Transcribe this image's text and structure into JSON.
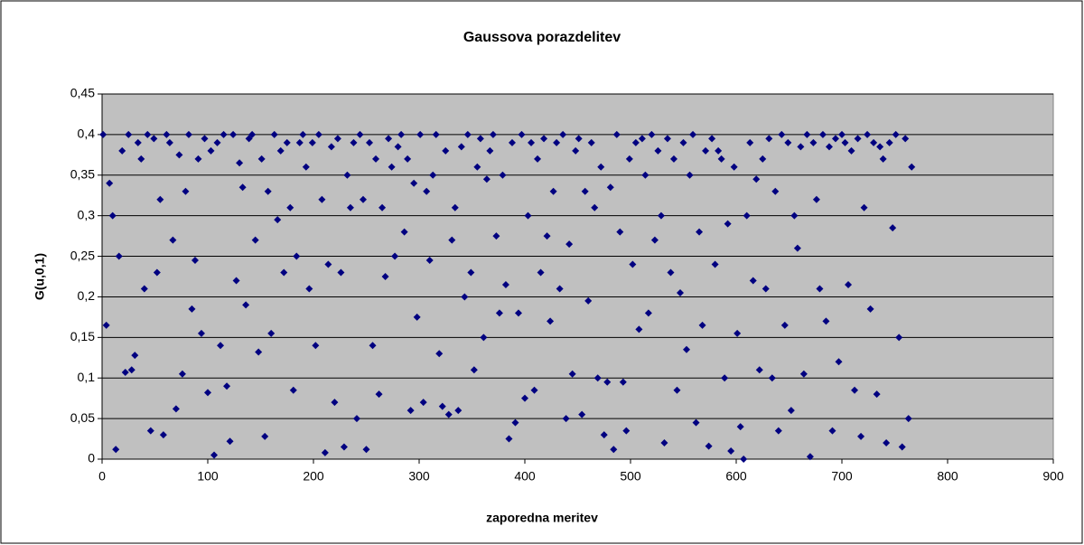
{
  "chart_data": {
    "type": "scatter",
    "title": "Gaussova porazdelitev",
    "x_label": "zaporedna meritev",
    "y_label": "G(u,0,1)",
    "color": "#000080",
    "grid": true,
    "xlim": [
      0,
      900
    ],
    "xticks": [
      0,
      100,
      200,
      300,
      400,
      500,
      600,
      700,
      800,
      900
    ],
    "ylim": [
      0,
      0.45
    ],
    "yticks": [
      0,
      {
        "value": 0.05,
        "label": "0,05"
      },
      {
        "value": 0.1,
        "label": "0,1"
      },
      {
        "value": 0.15,
        "label": "0,15"
      },
      {
        "value": 0.2,
        "label": "0,2"
      },
      {
        "value": 0.25,
        "label": "0,25"
      },
      {
        "value": 0.3,
        "label": "0,3"
      },
      {
        "value": 0.35,
        "label": "0,35"
      },
      {
        "value": 0.4,
        "label": "0,4"
      },
      {
        "value": 0.45,
        "label": "0,45"
      }
    ],
    "x": [
      1,
      4,
      7,
      10,
      13,
      16,
      19,
      22,
      25,
      28,
      31,
      34,
      37,
      40,
      43,
      46,
      49,
      52,
      55,
      58,
      61,
      64,
      67,
      70,
      73,
      76,
      79,
      82,
      85,
      88,
      91,
      94,
      97,
      100,
      103,
      106,
      109,
      112,
      115,
      118,
      121,
      124,
      127,
      130,
      133,
      136,
      139,
      142,
      145,
      148,
      151,
      154,
      157,
      160,
      163,
      166,
      169,
      172,
      175,
      178,
      181,
      184,
      187,
      190,
      193,
      196,
      199,
      202,
      205,
      208,
      211,
      214,
      217,
      220,
      223,
      226,
      229,
      232,
      235,
      238,
      241,
      244,
      247,
      250,
      253,
      256,
      259,
      262,
      265,
      268,
      271,
      274,
      277,
      280,
      283,
      286,
      289,
      292,
      295,
      298,
      301,
      304,
      307,
      310,
      313,
      316,
      319,
      322,
      325,
      328,
      331,
      334,
      337,
      340,
      343,
      346,
      349,
      352,
      355,
      358,
      361,
      364,
      367,
      370,
      373,
      376,
      379,
      382,
      385,
      388,
      391,
      394,
      397,
      400,
      403,
      406,
      409,
      412,
      415,
      418,
      421,
      424,
      427,
      430,
      433,
      436,
      439,
      442,
      445,
      448,
      451,
      454,
      457,
      460,
      463,
      466,
      469,
      472,
      475,
      478,
      481,
      484,
      487,
      490,
      493,
      496,
      499,
      502,
      505,
      508,
      511,
      514,
      517,
      520,
      523,
      526,
      529,
      532,
      535,
      538,
      541,
      544,
      547,
      550,
      553,
      556,
      559,
      562,
      565,
      568,
      571,
      574,
      577,
      580,
      583,
      586,
      589,
      592,
      595,
      598,
      601,
      604,
      607,
      610,
      613,
      616,
      619,
      622,
      625,
      628,
      631,
      634,
      637,
      640,
      643,
      646,
      649,
      652,
      655,
      658,
      661,
      664,
      667,
      670,
      673,
      676,
      679,
      682,
      685,
      688,
      691,
      694,
      697,
      700,
      703,
      706,
      709,
      712,
      715,
      718,
      721,
      724,
      727,
      730,
      733,
      736,
      739,
      742,
      745,
      748,
      751,
      754,
      757,
      760,
      763,
      766
    ],
    "values": [
      0.4,
      0.165,
      0.34,
      0.3,
      0.012,
      0.25,
      0.38,
      0.107,
      0.4,
      0.11,
      0.128,
      0.39,
      0.37,
      0.21,
      0.4,
      0.035,
      0.395,
      0.23,
      0.32,
      0.03,
      0.4,
      0.39,
      0.27,
      0.062,
      0.375,
      0.105,
      0.33,
      0.4,
      0.185,
      0.245,
      0.37,
      0.155,
      0.395,
      0.082,
      0.38,
      0.005,
      0.39,
      0.14,
      0.4,
      0.09,
      0.022,
      0.4,
      0.22,
      0.365,
      0.335,
      0.19,
      0.395,
      0.4,
      0.27,
      0.132,
      0.37,
      0.028,
      0.33,
      0.155,
      0.4,
      0.295,
      0.38,
      0.23,
      0.39,
      0.31,
      0.085,
      0.25,
      0.39,
      0.4,
      0.36,
      0.21,
      0.39,
      0.14,
      0.4,
      0.32,
      0.008,
      0.24,
      0.385,
      0.07,
      0.395,
      0.23,
      0.015,
      0.35,
      0.31,
      0.39,
      0.05,
      0.4,
      0.32,
      0.012,
      0.39,
      0.14,
      0.37,
      0.08,
      0.31,
      0.225,
      0.395,
      0.36,
      0.25,
      0.385,
      0.4,
      0.28,
      0.37,
      0.06,
      0.34,
      0.175,
      0.4,
      0.07,
      0.33,
      0.245,
      0.35,
      0.4,
      0.13,
      0.065,
      0.38,
      0.055,
      0.27,
      0.31,
      0.06,
      0.385,
      0.2,
      0.4,
      0.23,
      0.11,
      0.36,
      0.395,
      0.15,
      0.345,
      0.38,
      0.4,
      0.275,
      0.18,
      0.35,
      0.215,
      0.025,
      0.39,
      0.045,
      0.18,
      0.4,
      0.075,
      0.3,
      0.39,
      0.085,
      0.37,
      0.23,
      0.395,
      0.275,
      0.17,
      0.33,
      0.39,
      0.21,
      0.4,
      0.05,
      0.265,
      0.105,
      0.38,
      0.395,
      0.055,
      0.33,
      0.195,
      0.39,
      0.31,
      0.1,
      0.36,
      0.03,
      0.095,
      0.335,
      0.012,
      0.4,
      0.28,
      0.095,
      0.035,
      0.37,
      0.24,
      0.39,
      0.16,
      0.395,
      0.35,
      0.18,
      0.4,
      0.27,
      0.38,
      0.3,
      0.02,
      0.395,
      0.23,
      0.37,
      0.085,
      0.205,
      0.39,
      0.135,
      0.35,
      0.4,
      0.045,
      0.28,
      0.165,
      0.38,
      0.016,
      0.395,
      0.24,
      0.38,
      0.37,
      0.1,
      0.29,
      0.01,
      0.36,
      0.155,
      0.04,
      0.0,
      0.3,
      0.39,
      0.22,
      0.345,
      0.11,
      0.37,
      0.21,
      0.395,
      0.1,
      0.33,
      0.035,
      0.4,
      0.165,
      0.39,
      0.06,
      0.3,
      0.26,
      0.385,
      0.105,
      0.4,
      0.003,
      0.39,
      0.32,
      0.21,
      0.4,
      0.17,
      0.385,
      0.035,
      0.395,
      0.12,
      0.4,
      0.39,
      0.215,
      0.38,
      0.085,
      0.395,
      0.028,
      0.31,
      0.4,
      0.185,
      0.39,
      0.08,
      0.385,
      0.37,
      0.02,
      0.39,
      0.285,
      0.4,
      0.15,
      0.015,
      0.395,
      0.05,
      0.36
    ]
  }
}
